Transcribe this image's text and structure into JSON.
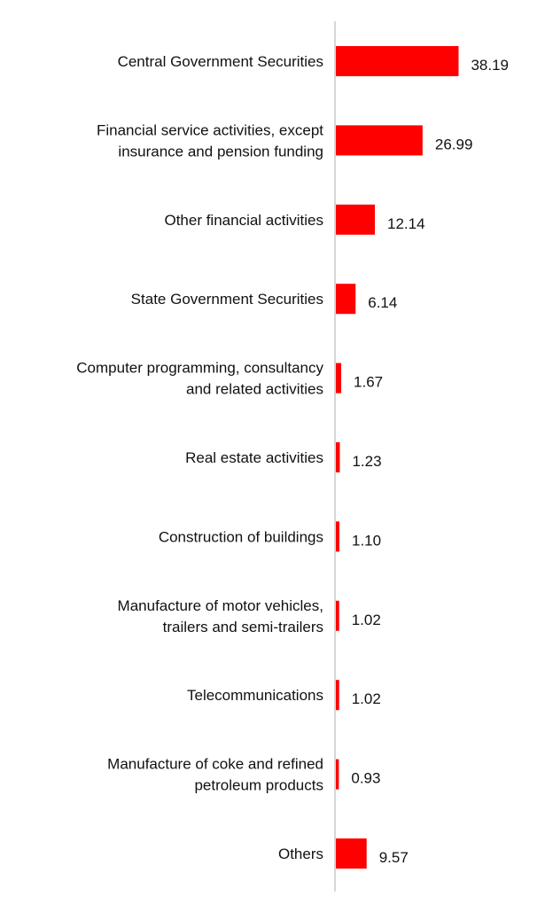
{
  "chart_data": {
    "type": "bar",
    "orientation": "horizontal",
    "title": "",
    "xlabel": "",
    "ylabel": "",
    "grid": false,
    "legend": "none",
    "bar_color": "#ff0000",
    "axis_color": "#c8c8c8",
    "xlim": [
      0,
      40
    ],
    "categories": [
      "Central Government Securities",
      "Financial service activities, except insurance and pension funding",
      "Other financial activities",
      "State Government Securities",
      "Computer programming, consultancy and related activities",
      "Real estate activities",
      "Construction of buildings",
      "Manufacture of motor vehicles, trailers and semi-trailers",
      "Telecommunications",
      "Manufacture of coke and refined petroleum products",
      "Others"
    ],
    "category_lines": [
      [
        "Central Government Securities"
      ],
      [
        "Financial service activities, except",
        "insurance and pension funding"
      ],
      [
        "Other financial activities"
      ],
      [
        "State Government Securities"
      ],
      [
        "Computer programming, consultancy",
        "and related activities"
      ],
      [
        "Real estate activities"
      ],
      [
        "Construction of buildings"
      ],
      [
        "Manufacture of motor vehicles,",
        "trailers and semi-trailers"
      ],
      [
        "Telecommunications"
      ],
      [
        "Manufacture of coke and refined",
        "petroleum products"
      ],
      [
        "Others"
      ]
    ],
    "values": [
      38.19,
      26.99,
      12.14,
      6.14,
      1.67,
      1.23,
      1.1,
      1.02,
      1.02,
      0.93,
      9.57
    ],
    "value_labels": [
      "38.19",
      "26.99",
      "12.14",
      "6.14",
      "1.67",
      "1.23",
      "1.10",
      "1.02",
      "1.02",
      "0.93",
      "9.57"
    ]
  }
}
